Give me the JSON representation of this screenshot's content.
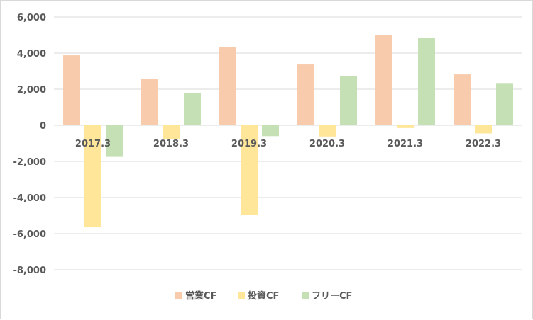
{
  "chart_data": {
    "type": "bar",
    "categories": [
      "2017.3",
      "2018.3",
      "2019.3",
      "2020.3",
      "2021.3",
      "2022.3"
    ],
    "series": [
      {
        "name": "営業CF",
        "color": "#f8cbad",
        "values": [
          3880,
          2550,
          4350,
          3370,
          4980,
          2820
        ]
      },
      {
        "name": "投資CF",
        "color": "#ffe699",
        "values": [
          -5650,
          -750,
          -4950,
          -620,
          -150,
          -450
        ]
      },
      {
        "name": "フリーCF",
        "color": "#c5e0b4",
        "values": [
          -1750,
          1800,
          -600,
          2730,
          4860,
          2340
        ]
      }
    ],
    "ylim": [
      -8000,
      6000
    ],
    "yticks": [
      "6,000",
      "4,000",
      "2,000",
      "0",
      "-2,000",
      "-4,000",
      "-6,000",
      "-8,000"
    ],
    "ytick_values": [
      6000,
      4000,
      2000,
      0,
      -2000,
      -4000,
      -6000,
      -8000
    ],
    "grid": true,
    "legend_position": "bottom"
  }
}
